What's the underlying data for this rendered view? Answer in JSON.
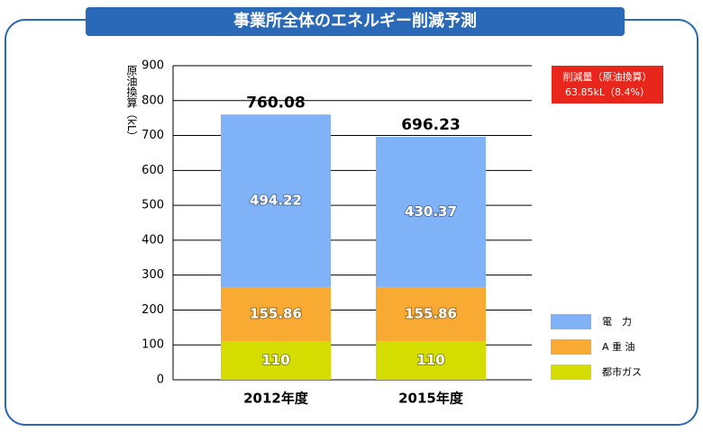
{
  "chart_data": {
    "type": "stacked-bar",
    "title": "事業所全体のエネルギー削減予測",
    "y_label": "原油換算（kL）",
    "categories": [
      "2012年度",
      "2015年度"
    ],
    "series": [
      {
        "name": "都市ガス",
        "color": "#d4dc00",
        "values": [
          110,
          110
        ]
      },
      {
        "name": "A 重 油",
        "color": "#f8aa32",
        "values": [
          155.86,
          155.86
        ]
      },
      {
        "name": "電　力",
        "color": "#80b2f7",
        "values": [
          494.22,
          430.37
        ]
      }
    ],
    "totals": [
      760.08,
      696.23
    ],
    "annotation": [
      "削減量（原油換算）",
      "63.85kL（8.4%）"
    ],
    "ylim": [
      0,
      900
    ],
    "yticks": [
      0,
      100,
      200,
      300,
      400,
      500,
      600,
      700,
      800,
      900
    ],
    "grid": true
  }
}
